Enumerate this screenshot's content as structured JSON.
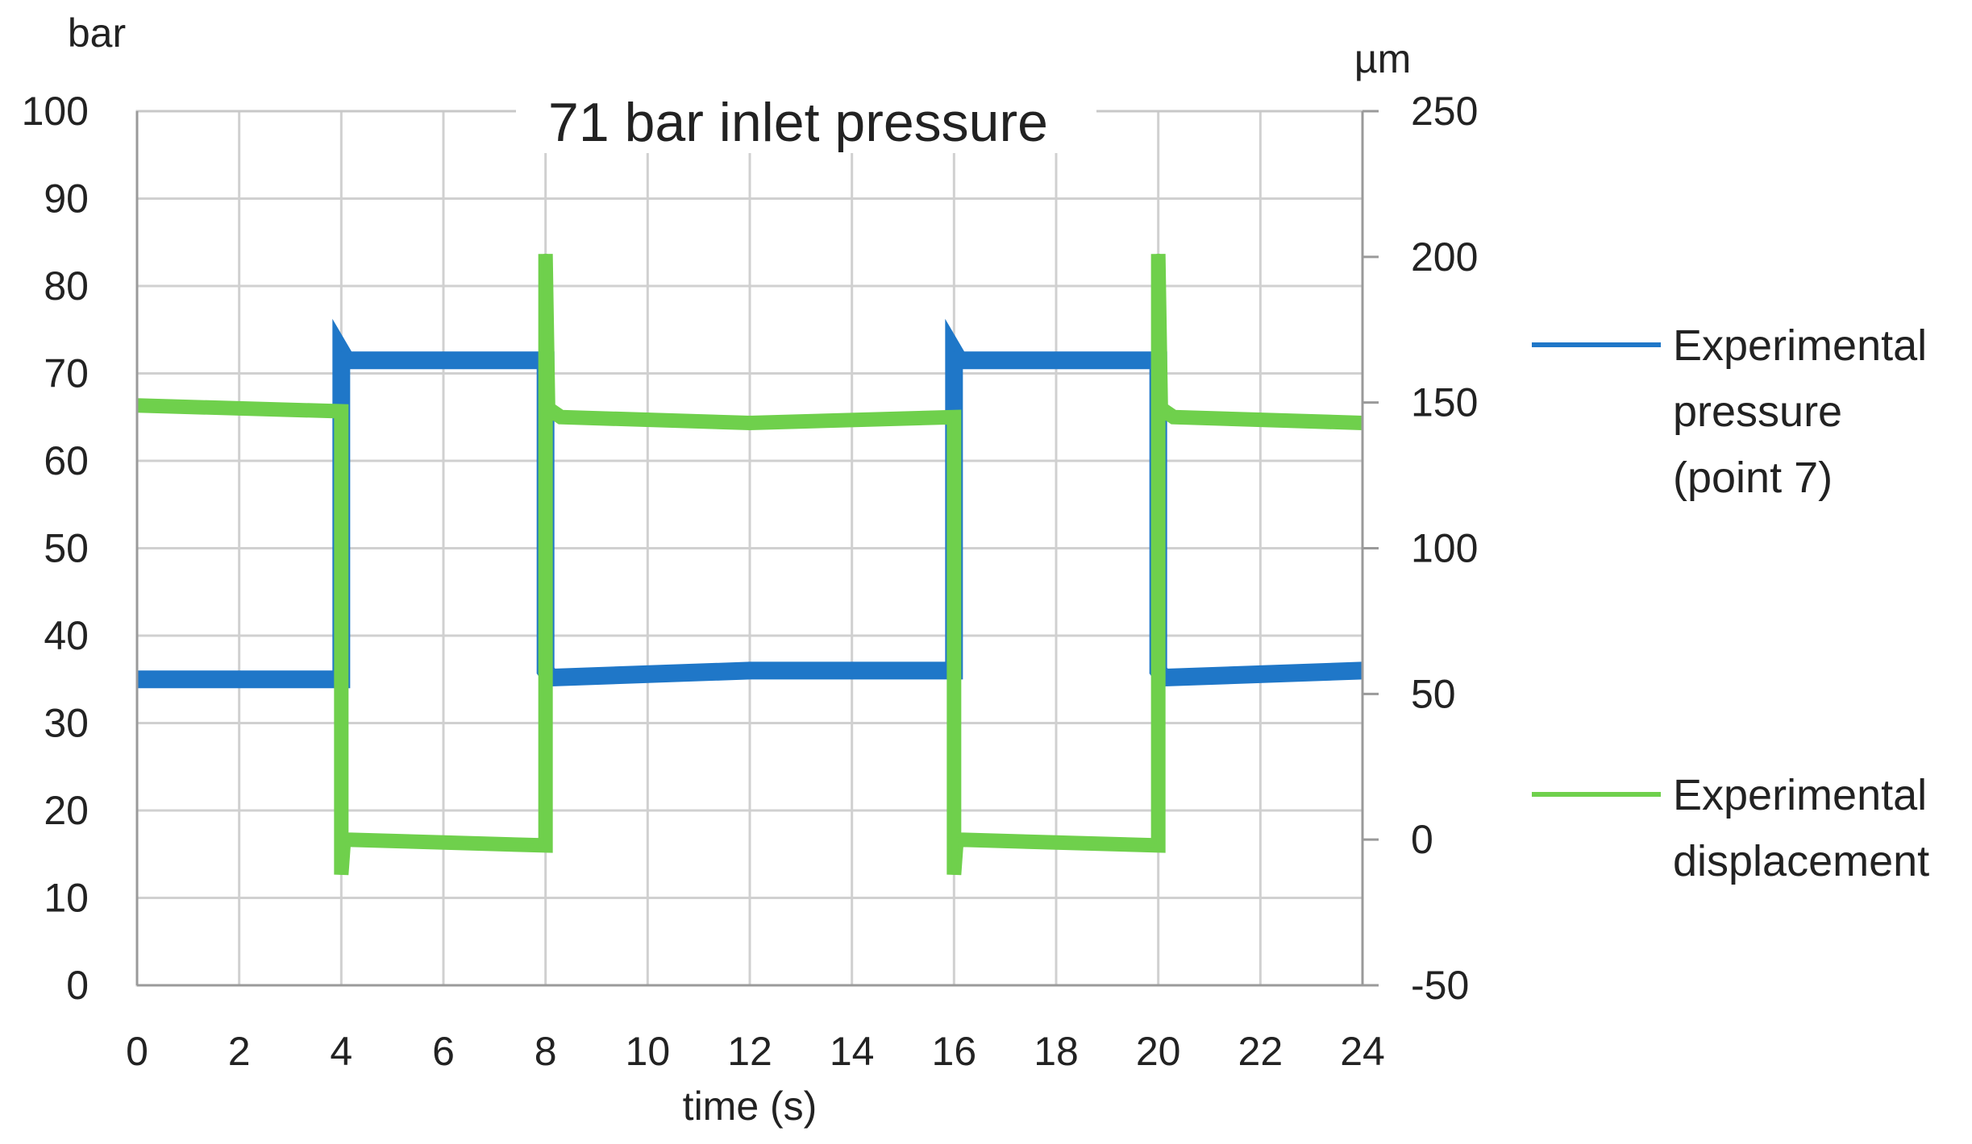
{
  "chart_data": {
    "type": "line",
    "title": "71 bar inlet pressure",
    "xlabel": "time (s)",
    "ylabel_left_unit": "bar",
    "ylabel_right_unit": "µm",
    "xlim": [
      0,
      24
    ],
    "ylim_left": [
      0,
      100
    ],
    "ylim_right": [
      -50,
      250
    ],
    "x_ticks": [
      "0",
      "2",
      "4",
      "6",
      "8",
      "10",
      "12",
      "14",
      "16",
      "18",
      "20",
      "22",
      "24"
    ],
    "y_left_ticks": [
      "0",
      "10",
      "20",
      "30",
      "40",
      "50",
      "60",
      "70",
      "80",
      "90",
      "100"
    ],
    "y_right_ticks": [
      "-50",
      "0",
      "50",
      "100",
      "150",
      "200",
      "250"
    ],
    "grid": true,
    "legend_position": "right",
    "series": [
      {
        "name": "Experimental pressure (point 7)",
        "axis": "left",
        "color": "#1f77c8",
        "x": [
          0,
          4,
          4,
          4.1,
          8,
          8,
          8.1,
          12,
          16,
          16,
          16.1,
          20,
          20,
          20.1,
          24
        ],
        "y": [
          35,
          35,
          72.5,
          71.5,
          71.5,
          36,
          35.2,
          36,
          36,
          72.5,
          71.5,
          71.5,
          36,
          35.2,
          36
        ]
      },
      {
        "name": "Experimental displacement",
        "axis": "right",
        "color": "#6fd04c",
        "x": [
          0,
          2,
          4,
          4,
          4.05,
          8,
          8,
          8.05,
          8.3,
          12,
          16,
          16,
          16.05,
          20,
          20,
          20.05,
          20.3,
          24
        ],
        "y": [
          149,
          148,
          147,
          -12,
          0,
          -2,
          201,
          148,
          145,
          143,
          145,
          -12,
          0,
          -2,
          201,
          148,
          145,
          143
        ]
      }
    ]
  }
}
